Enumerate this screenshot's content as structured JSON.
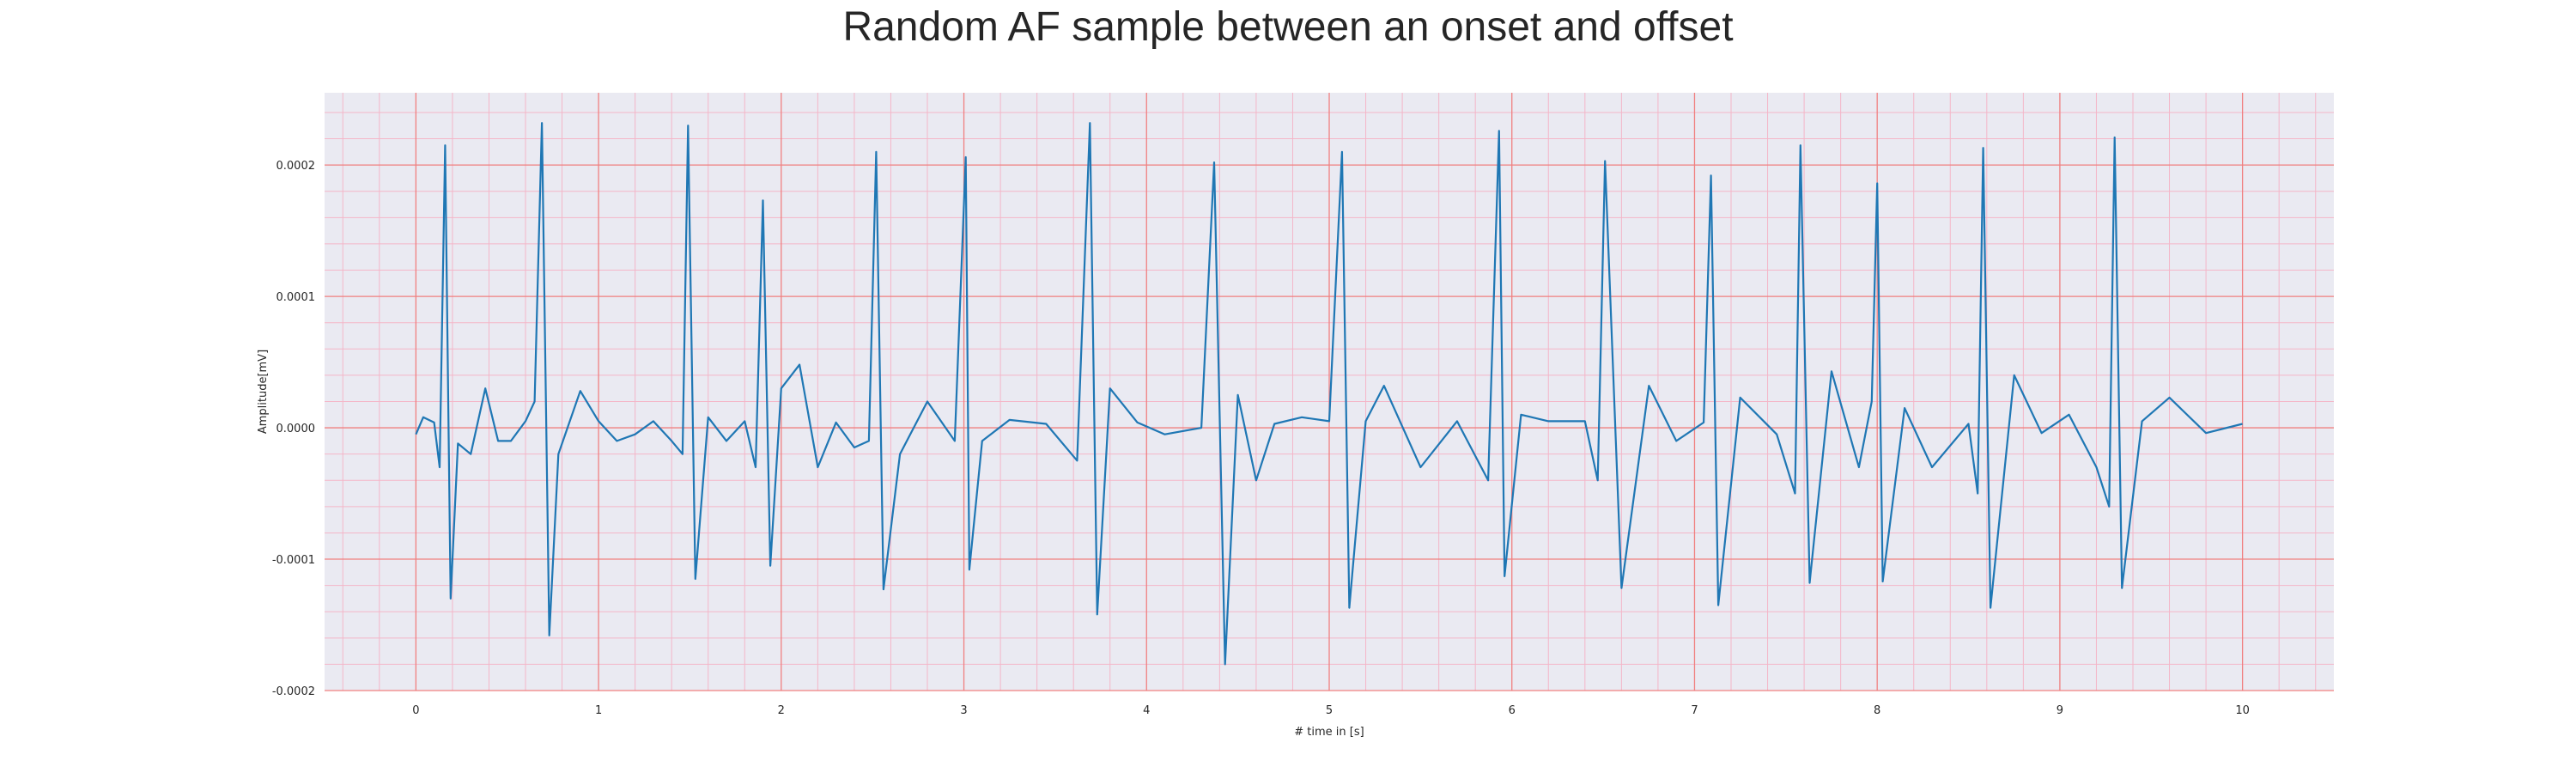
{
  "chart_data": {
    "type": "line",
    "title": "Random AF sample between an onset and offset",
    "xlabel": "# time in [s]",
    "ylabel": "Amplitude[mV]",
    "xlim": [
      -0.5,
      10.5
    ],
    "ylim": [
      -0.0002,
      0.000255
    ],
    "x_ticks": [
      0,
      1,
      2,
      3,
      4,
      5,
      6,
      7,
      8,
      9,
      10
    ],
    "x_tick_labels": [
      "0",
      "1",
      "2",
      "3",
      "4",
      "5",
      "6",
      "7",
      "8",
      "9",
      "10"
    ],
    "y_ticks": [
      -0.0002,
      -0.0001,
      0.0,
      0.0001,
      0.0002
    ],
    "y_tick_labels": [
      "-0.0002",
      "-0.0001",
      "0.0000",
      "0.0001",
      "0.0002"
    ],
    "grid": true,
    "minor_grid": true,
    "legend": "none",
    "colors": {
      "line": "#1f77b4",
      "plot_background": "#eaeaf2",
      "major_grid": "#f08080",
      "minor_grid": "#f4b6c8"
    },
    "series": [
      {
        "x": [
          0.0,
          0.04,
          0.1,
          0.13,
          0.16,
          0.19,
          0.23,
          0.3,
          0.38,
          0.45,
          0.52,
          0.6,
          0.65,
          0.69,
          0.73,
          0.78,
          0.9,
          1.0,
          1.1,
          1.2,
          1.3,
          1.4,
          1.46,
          1.49,
          1.53,
          1.6,
          1.7,
          1.8,
          1.86,
          1.9,
          1.94,
          2.0,
          2.1,
          2.2,
          2.3,
          2.4,
          2.48,
          2.52,
          2.56,
          2.65,
          2.8,
          2.95,
          3.01,
          3.03,
          3.1,
          3.25,
          3.45,
          3.62,
          3.69,
          3.73,
          3.8,
          3.95,
          4.1,
          4.3,
          4.37,
          4.43,
          4.5,
          4.6,
          4.7,
          4.85,
          5.0,
          5.07,
          5.11,
          5.2,
          5.3,
          5.5,
          5.7,
          5.87,
          5.93,
          5.96,
          6.05,
          6.2,
          6.4,
          6.47,
          6.51,
          6.6,
          6.75,
          6.9,
          7.05,
          7.09,
          7.13,
          7.25,
          7.45,
          7.55,
          7.58,
          7.63,
          7.75,
          7.9,
          7.97,
          8.0,
          8.03,
          8.15,
          8.3,
          8.5,
          8.55,
          8.58,
          8.62,
          8.75,
          8.9,
          9.05,
          9.2,
          9.27,
          9.3,
          9.34,
          9.45,
          9.6,
          9.8,
          10.0
        ],
        "y": [
          -5e-06,
          8e-06,
          4e-06,
          -3e-05,
          0.000215,
          -0.00013,
          -1.2e-05,
          -2e-05,
          3e-05,
          -1e-05,
          -1e-05,
          5e-06,
          2e-05,
          0.000232,
          -0.000158,
          -2e-05,
          2.8e-05,
          5e-06,
          -1e-05,
          -5e-06,
          5e-06,
          -1e-05,
          -2e-05,
          0.00023,
          -0.000115,
          8e-06,
          -1e-05,
          5e-06,
          -3e-05,
          0.000173,
          -0.000105,
          3e-05,
          4.8e-05,
          -3e-05,
          4e-06,
          -1.5e-05,
          -1e-05,
          0.00021,
          -0.000123,
          -2e-05,
          2e-05,
          -1e-05,
          0.000206,
          -0.000108,
          -1e-05,
          6e-06,
          3e-06,
          -2.5e-05,
          0.000232,
          -0.000142,
          3e-05,
          4e-06,
          -5e-06,
          0.0,
          0.000202,
          -0.00018,
          2.5e-05,
          -4e-05,
          3e-06,
          8e-06,
          5e-06,
          0.00021,
          -0.000137,
          5e-06,
          3.2e-05,
          -3e-05,
          5e-06,
          -4e-05,
          0.000226,
          -0.000113,
          1e-05,
          5e-06,
          5e-06,
          -4e-05,
          0.000203,
          -0.000122,
          3.2e-05,
          -1e-05,
          4e-06,
          0.000192,
          -0.000135,
          2.3e-05,
          -5e-06,
          -5e-05,
          0.000215,
          -0.000118,
          4.3e-05,
          -3e-05,
          2e-05,
          0.000186,
          -0.000117,
          1.5e-05,
          -3e-05,
          3e-06,
          -5e-05,
          0.000213,
          -0.000137,
          4e-05,
          -4e-06,
          1e-05,
          -3e-05,
          -6e-05,
          0.000221,
          -0.000122,
          5e-06,
          2.3e-05,
          -4e-06,
          3e-06
        ]
      }
    ]
  }
}
